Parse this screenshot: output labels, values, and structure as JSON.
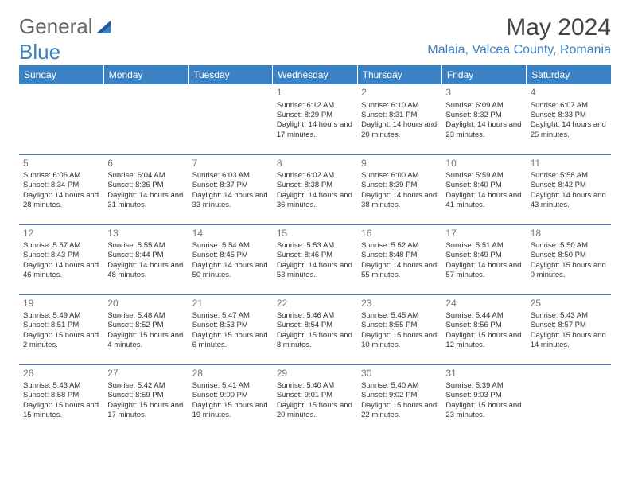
{
  "logo": {
    "part1": "General",
    "part2": "Blue"
  },
  "title": "May 2024",
  "location": "Malaia, Valcea County, Romania",
  "colors": {
    "accent": "#3b82c4",
    "header_text": "#ffffff",
    "body_text": "#333333",
    "daynum": "#777777",
    "title_text": "#444444",
    "background": "#ffffff"
  },
  "typography": {
    "title_fontsize": 30,
    "location_fontsize": 16,
    "th_fontsize": 12,
    "cell_fontsize": 9.5,
    "daynum_fontsize": 12
  },
  "day_headers": [
    "Sunday",
    "Monday",
    "Tuesday",
    "Wednesday",
    "Thursday",
    "Friday",
    "Saturday"
  ],
  "weeks": [
    [
      null,
      null,
      null,
      {
        "n": "1",
        "sr": "6:12 AM",
        "ss": "8:29 PM",
        "dl": "14 hours and 17 minutes."
      },
      {
        "n": "2",
        "sr": "6:10 AM",
        "ss": "8:31 PM",
        "dl": "14 hours and 20 minutes."
      },
      {
        "n": "3",
        "sr": "6:09 AM",
        "ss": "8:32 PM",
        "dl": "14 hours and 23 minutes."
      },
      {
        "n": "4",
        "sr": "6:07 AM",
        "ss": "8:33 PM",
        "dl": "14 hours and 25 minutes."
      }
    ],
    [
      {
        "n": "5",
        "sr": "6:06 AM",
        "ss": "8:34 PM",
        "dl": "14 hours and 28 minutes."
      },
      {
        "n": "6",
        "sr": "6:04 AM",
        "ss": "8:36 PM",
        "dl": "14 hours and 31 minutes."
      },
      {
        "n": "7",
        "sr": "6:03 AM",
        "ss": "8:37 PM",
        "dl": "14 hours and 33 minutes."
      },
      {
        "n": "8",
        "sr": "6:02 AM",
        "ss": "8:38 PM",
        "dl": "14 hours and 36 minutes."
      },
      {
        "n": "9",
        "sr": "6:00 AM",
        "ss": "8:39 PM",
        "dl": "14 hours and 38 minutes."
      },
      {
        "n": "10",
        "sr": "5:59 AM",
        "ss": "8:40 PM",
        "dl": "14 hours and 41 minutes."
      },
      {
        "n": "11",
        "sr": "5:58 AM",
        "ss": "8:42 PM",
        "dl": "14 hours and 43 minutes."
      }
    ],
    [
      {
        "n": "12",
        "sr": "5:57 AM",
        "ss": "8:43 PM",
        "dl": "14 hours and 46 minutes."
      },
      {
        "n": "13",
        "sr": "5:55 AM",
        "ss": "8:44 PM",
        "dl": "14 hours and 48 minutes."
      },
      {
        "n": "14",
        "sr": "5:54 AM",
        "ss": "8:45 PM",
        "dl": "14 hours and 50 minutes."
      },
      {
        "n": "15",
        "sr": "5:53 AM",
        "ss": "8:46 PM",
        "dl": "14 hours and 53 minutes."
      },
      {
        "n": "16",
        "sr": "5:52 AM",
        "ss": "8:48 PM",
        "dl": "14 hours and 55 minutes."
      },
      {
        "n": "17",
        "sr": "5:51 AM",
        "ss": "8:49 PM",
        "dl": "14 hours and 57 minutes."
      },
      {
        "n": "18",
        "sr": "5:50 AM",
        "ss": "8:50 PM",
        "dl": "15 hours and 0 minutes."
      }
    ],
    [
      {
        "n": "19",
        "sr": "5:49 AM",
        "ss": "8:51 PM",
        "dl": "15 hours and 2 minutes."
      },
      {
        "n": "20",
        "sr": "5:48 AM",
        "ss": "8:52 PM",
        "dl": "15 hours and 4 minutes."
      },
      {
        "n": "21",
        "sr": "5:47 AM",
        "ss": "8:53 PM",
        "dl": "15 hours and 6 minutes."
      },
      {
        "n": "22",
        "sr": "5:46 AM",
        "ss": "8:54 PM",
        "dl": "15 hours and 8 minutes."
      },
      {
        "n": "23",
        "sr": "5:45 AM",
        "ss": "8:55 PM",
        "dl": "15 hours and 10 minutes."
      },
      {
        "n": "24",
        "sr": "5:44 AM",
        "ss": "8:56 PM",
        "dl": "15 hours and 12 minutes."
      },
      {
        "n": "25",
        "sr": "5:43 AM",
        "ss": "8:57 PM",
        "dl": "15 hours and 14 minutes."
      }
    ],
    [
      {
        "n": "26",
        "sr": "5:43 AM",
        "ss": "8:58 PM",
        "dl": "15 hours and 15 minutes."
      },
      {
        "n": "27",
        "sr": "5:42 AM",
        "ss": "8:59 PM",
        "dl": "15 hours and 17 minutes."
      },
      {
        "n": "28",
        "sr": "5:41 AM",
        "ss": "9:00 PM",
        "dl": "15 hours and 19 minutes."
      },
      {
        "n": "29",
        "sr": "5:40 AM",
        "ss": "9:01 PM",
        "dl": "15 hours and 20 minutes."
      },
      {
        "n": "30",
        "sr": "5:40 AM",
        "ss": "9:02 PM",
        "dl": "15 hours and 22 minutes."
      },
      {
        "n": "31",
        "sr": "5:39 AM",
        "ss": "9:03 PM",
        "dl": "15 hours and 23 minutes."
      },
      null
    ]
  ],
  "labels": {
    "sunrise": "Sunrise: ",
    "sunset": "Sunset: ",
    "daylight": "Daylight: "
  }
}
